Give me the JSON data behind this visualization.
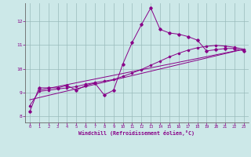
{
  "xlabel": "Windchill (Refroidissement éolien,°C)",
  "xlim": [
    -0.5,
    23.5
  ],
  "ylim": [
    7.75,
    12.75
  ],
  "xticks": [
    0,
    1,
    2,
    3,
    4,
    5,
    6,
    7,
    8,
    9,
    10,
    11,
    12,
    13,
    14,
    15,
    16,
    17,
    18,
    19,
    20,
    21,
    22,
    23
  ],
  "yticks": [
    8,
    9,
    10,
    11,
    12
  ],
  "background_color": "#cce8e8",
  "line_color": "#880088",
  "grid_color": "#99bbbb",
  "main_x": [
    0,
    1,
    2,
    3,
    4,
    5,
    6,
    7,
    8,
    9,
    10,
    11,
    12,
    13,
    14,
    15,
    16,
    17,
    18,
    19,
    20,
    21,
    22,
    23
  ],
  "main_y": [
    8.2,
    9.2,
    9.2,
    9.2,
    9.3,
    9.1,
    9.3,
    9.4,
    8.9,
    9.1,
    10.2,
    11.1,
    11.85,
    12.55,
    11.65,
    11.5,
    11.45,
    11.35,
    11.2,
    10.75,
    10.8,
    10.85,
    10.85,
    10.75
  ],
  "line2_x": [
    0,
    1,
    2,
    3,
    4,
    5,
    6,
    7,
    8,
    9,
    10,
    11,
    12,
    13,
    14,
    15,
    16,
    17,
    18,
    19,
    20,
    21,
    22,
    23
  ],
  "line2_y": [
    8.45,
    9.05,
    9.1,
    9.15,
    9.2,
    9.25,
    9.35,
    9.42,
    9.48,
    9.55,
    9.68,
    9.82,
    9.97,
    10.15,
    10.32,
    10.5,
    10.65,
    10.78,
    10.88,
    10.94,
    10.98,
    10.95,
    10.9,
    10.82
  ],
  "line3_x": [
    0,
    23
  ],
  "line3_y": [
    8.7,
    10.82
  ],
  "line4_x": [
    1,
    23
  ],
  "line4_y": [
    9.1,
    10.82
  ]
}
